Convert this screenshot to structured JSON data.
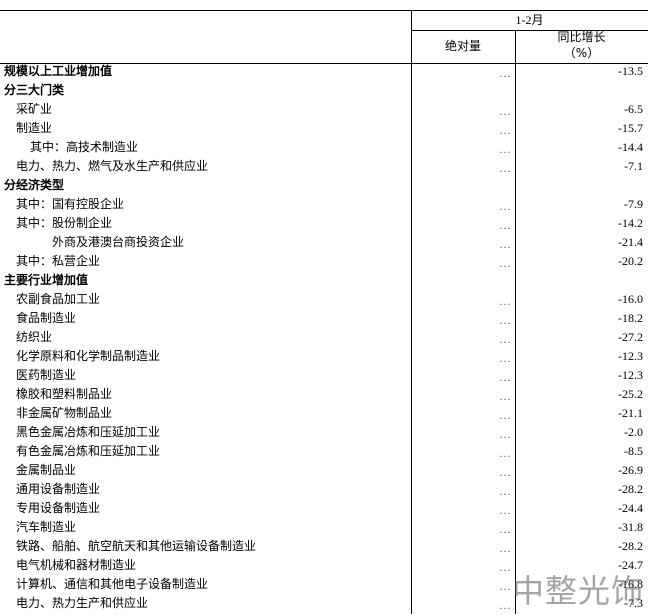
{
  "header": {
    "period": "1-2月",
    "col_abs": "绝对量",
    "col_yoy": "同比增长",
    "col_yoy_unit": "（%）"
  },
  "table": {
    "rows": [
      [
        "规模以上工业增加值",
        "…",
        "-13.5"
      ],
      [
        "分三大门类"
      ],
      [
        "采矿业",
        "…",
        "-6.5"
      ],
      [
        "制造业",
        "…",
        "-15.7"
      ],
      [
        "其中：高技术制造业",
        "…",
        "-14.4"
      ],
      [
        "电力、热力、燃气及水生产和供应业",
        "…",
        "-7.1"
      ],
      [
        "分经济类型"
      ],
      [
        "其中：国有控股企业",
        "…",
        "-7.9"
      ],
      [
        "其中：股份制企业",
        "…",
        "-14.2"
      ],
      [
        "外商及港澳台商投资企业",
        "…",
        "-21.4"
      ],
      [
        "其中：私营企业",
        "…",
        "-20.2"
      ],
      [
        "主要行业增加值"
      ],
      [
        "农副食品加工业",
        "…",
        "-16.0"
      ],
      [
        "食品制造业",
        "…",
        "-18.2"
      ],
      [
        "纺织业",
        "…",
        "-27.2"
      ],
      [
        "化学原料和化学制品制造业",
        "…",
        "-12.3"
      ],
      [
        "医药制造业",
        "…",
        "-12.3"
      ],
      [
        "橡胶和塑料制品业",
        "…",
        "-25.2"
      ],
      [
        "非金属矿物制品业",
        "…",
        "-21.1"
      ],
      [
        "黑色金属冶炼和压延加工业",
        "…",
        "-2.0"
      ],
      [
        "有色金属冶炼和压延加工业",
        "…",
        "-8.5"
      ],
      [
        "金属制品业",
        "…",
        "-26.9"
      ],
      [
        "通用设备制造业",
        "…",
        "-28.2"
      ],
      [
        "专用设备制造业",
        "…",
        "-24.4"
      ],
      [
        "汽车制造业",
        "…",
        "-31.8"
      ],
      [
        "铁路、船舶、航空航天和其他运输设备制造业",
        "…",
        "-28.2"
      ],
      [
        "电气机械和器材制造业",
        "…",
        "-24.7"
      ],
      [
        "计算机、通信和其他电子设备制造业",
        "…",
        "-16.8"
      ],
      [
        "电力、热力生产和供应业",
        "…",
        "-7.3"
      ]
    ]
  },
  "watermark": "中整光饰"
}
